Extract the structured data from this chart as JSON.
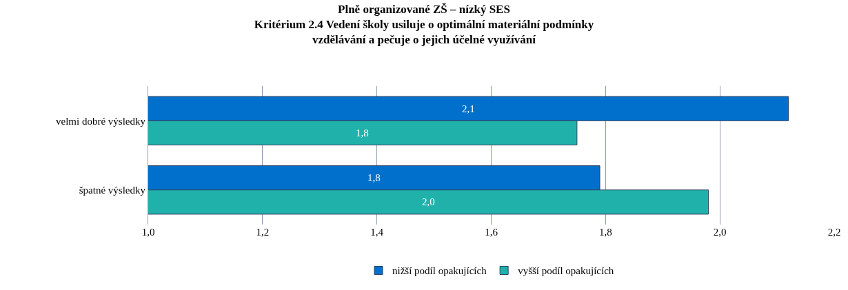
{
  "chart_data": {
    "type": "bar",
    "orientation": "horizontal",
    "title": "Plně organizované ZŠ – nízký SES\nKritérium 2.4 Vedení školy usiluje o optimální materiální podmínky\nvzdělávání a pečuje o jejich účelné využívání",
    "categories": [
      "velmi dobré výsledky",
      "špatné výsledky"
    ],
    "series": [
      {
        "name": "nižší podíl opakujících",
        "color": "#0070cc",
        "values": [
          2.12,
          1.79
        ],
        "value_labels": [
          "2,1",
          "1,8"
        ]
      },
      {
        "name": "vyšší podíl opakujících",
        "color": "#20b2aa",
        "values": [
          1.75,
          1.98
        ],
        "value_labels": [
          "1,8",
          "2,0"
        ]
      }
    ],
    "xlim": [
      1.0,
      2.2
    ],
    "xticks": [
      {
        "value": 1.0,
        "label": "1,0"
      },
      {
        "value": 1.2,
        "label": "1,2"
      },
      {
        "value": 1.4,
        "label": "1,4"
      },
      {
        "value": 1.6,
        "label": "1,6"
      },
      {
        "value": 1.8,
        "label": "1,8"
      },
      {
        "value": 2.0,
        "label": "2,0"
      },
      {
        "value": 2.2,
        "label": "2,2"
      }
    ],
    "grid": "x",
    "legend": "bottom"
  }
}
